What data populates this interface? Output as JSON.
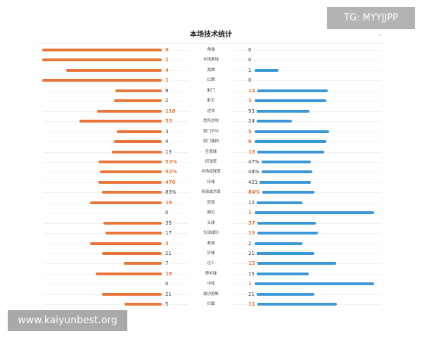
{
  "header": {
    "title": "本场技术统计"
  },
  "watermarks": {
    "tg": "TG: MYYJJPP",
    "site": "www.kaiyunbest.org"
  },
  "colors": {
    "home": "#e8763a",
    "away": "#3a98d8",
    "highlight": "#e8763a"
  },
  "max_bar_fraction_note": "bar fill is proportional to value within each row",
  "stats": [
    {
      "label": "角球",
      "home": "6",
      "away": "0",
      "home_frac": 1.0,
      "away_frac": 0.0,
      "hl": "home"
    },
    {
      "label": "半场角球",
      "home": "2",
      "away": "0",
      "home_frac": 1.0,
      "away_frac": 0.0,
      "hl": "home"
    },
    {
      "label": "黄牌",
      "home": "4",
      "away": "1",
      "home_frac": 0.8,
      "away_frac": 0.2,
      "hl": "home"
    },
    {
      "label": "红牌",
      "home": "1",
      "away": "0",
      "home_frac": 1.0,
      "away_frac": 0.0,
      "hl": "home"
    },
    {
      "label": "射门",
      "home": "9",
      "away": "14",
      "home_frac": 0.39,
      "away_frac": 0.61,
      "hl": "away"
    },
    {
      "label": "射正",
      "home": "2",
      "away": "3",
      "home_frac": 0.4,
      "away_frac": 0.6,
      "hl": "away"
    },
    {
      "label": "进攻",
      "home": "110",
      "away": "93",
      "home_frac": 0.54,
      "away_frac": 0.46,
      "hl": "home"
    },
    {
      "label": "危险进攻",
      "home": "53",
      "away": "24",
      "home_frac": 0.69,
      "away_frac": 0.31,
      "hl": "home"
    },
    {
      "label": "射门不中",
      "home": "3",
      "away": "5",
      "home_frac": 0.375,
      "away_frac": 0.625,
      "hl": "away"
    },
    {
      "label": "射门被挡",
      "home": "4",
      "away": "6",
      "home_frac": 0.4,
      "away_frac": 0.6,
      "hl": "away"
    },
    {
      "label": "任意球",
      "home": "13",
      "away": "18",
      "home_frac": 0.42,
      "away_frac": 0.58,
      "hl": "away"
    },
    {
      "label": "控球率",
      "home": "53%",
      "away": "47%",
      "home_frac": 0.53,
      "away_frac": 0.47,
      "hl": "home"
    },
    {
      "label": "半场控球率",
      "home": "52%",
      "away": "48%",
      "home_frac": 0.52,
      "away_frac": 0.48,
      "hl": "home"
    },
    {
      "label": "传球",
      "home": "470",
      "away": "421",
      "home_frac": 0.53,
      "away_frac": 0.47,
      "hl": "home"
    },
    {
      "label": "传球成功率",
      "home": "83%",
      "away": "84%",
      "home_frac": 0.5,
      "away_frac": 0.5,
      "hl": "away"
    },
    {
      "label": "犯规",
      "home": "18",
      "away": "12",
      "home_frac": 0.6,
      "away_frac": 0.4,
      "hl": "home"
    },
    {
      "label": "越位",
      "home": "0",
      "away": "1",
      "home_frac": 0.0,
      "away_frac": 1.0,
      "hl": "away"
    },
    {
      "label": "头球",
      "home": "35",
      "away": "37",
      "home_frac": 0.49,
      "away_frac": 0.51,
      "hl": "away"
    },
    {
      "label": "头球成功",
      "home": "17",
      "away": "19",
      "home_frac": 0.47,
      "away_frac": 0.53,
      "hl": "away"
    },
    {
      "label": "救球",
      "home": "3",
      "away": "2",
      "home_frac": 0.6,
      "away_frac": 0.4,
      "hl": "home"
    },
    {
      "label": "铲球",
      "home": "21",
      "away": "21",
      "home_frac": 0.5,
      "away_frac": 0.5,
      "hl": "none"
    },
    {
      "label": "过人",
      "home": "7",
      "away": "15",
      "home_frac": 0.32,
      "away_frac": 0.68,
      "hl": "away"
    },
    {
      "label": "界外球",
      "home": "18",
      "away": "15",
      "home_frac": 0.55,
      "away_frac": 0.45,
      "hl": "home"
    },
    {
      "label": "中柱",
      "home": "0",
      "away": "1",
      "home_frac": 0.0,
      "away_frac": 1.0,
      "hl": "away"
    },
    {
      "label": "成功抢断",
      "home": "21",
      "away": "21",
      "home_frac": 0.5,
      "away_frac": 0.5,
      "hl": "none"
    },
    {
      "label": "拦截",
      "home": "5",
      "away": "11",
      "home_frac": 0.31,
      "away_frac": 0.69,
      "hl": "away"
    }
  ]
}
